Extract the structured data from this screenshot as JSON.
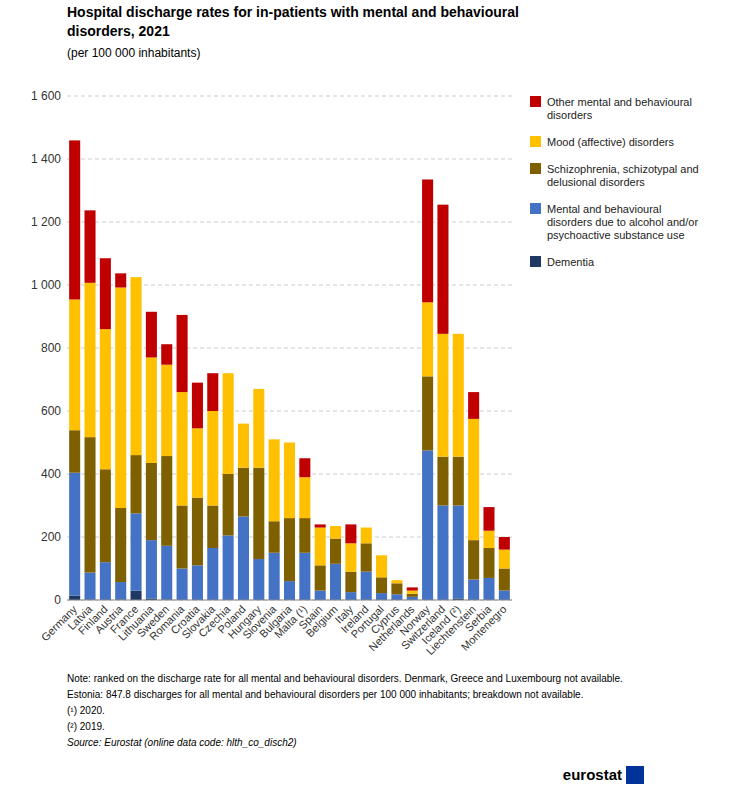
{
  "chart_data": {
    "type": "bar",
    "stacked": true,
    "title": "Hospital discharge rates for in-patients with mental and behavioural\ndisorders, 2021",
    "subtitle": "(per 100 000 inhabitants)",
    "categories": [
      "Germany",
      "Latvia",
      "Finland",
      "Austria",
      "France",
      "Lithuania",
      "Sweden",
      "Romania",
      "Croatia",
      "Slovakia",
      "Czechia",
      "Poland",
      "Hungary",
      "Slovenia",
      "Bulgaria",
      "Malta (¹)",
      "Spain",
      "Belgium",
      "Italy",
      "Ireland",
      "Portugal",
      "Cyprus",
      "Netherlands",
      "Norway",
      "Switzerland",
      "Iceland (²)",
      "Liechtenstein",
      "Serbia",
      "Montenegro"
    ],
    "series": [
      {
        "name": "Dementia",
        "color": "#1f3864",
        "values": [
          14,
          2,
          0,
          2,
          30,
          5,
          2,
          0,
          0,
          0,
          0,
          0,
          0,
          0,
          0,
          0,
          0,
          0,
          0,
          0,
          0,
          0,
          0,
          0,
          0,
          5,
          0,
          0,
          0
        ]
      },
      {
        "name": "Mental and behavioural\ndisorders due to alcohol and/or\npsychoactive substance use",
        "color": "#4472c4",
        "values": [
          390,
          85,
          120,
          55,
          245,
          185,
          170,
          100,
          110,
          165,
          205,
          265,
          130,
          150,
          60,
          150,
          30,
          115,
          25,
          90,
          22,
          18,
          10,
          475,
          300,
          295,
          65,
          70,
          30
        ]
      },
      {
        "name": "Schizophrenia, schizotypal and\ndelusional disorders",
        "color": "#7f6000",
        "values": [
          135,
          430,
          295,
          235,
          185,
          245,
          285,
          200,
          215,
          135,
          195,
          155,
          290,
          100,
          200,
          110,
          80,
          80,
          65,
          90,
          50,
          35,
          10,
          235,
          155,
          155,
          125,
          95,
          70
        ]
      },
      {
        "name": "Mood (affective) disorders",
        "color": "#ffc000",
        "values": [
          415,
          490,
          445,
          700,
          565,
          335,
          290,
          360,
          220,
          300,
          320,
          140,
          250,
          260,
          240,
          130,
          120,
          40,
          90,
          50,
          70,
          10,
          10,
          235,
          390,
          390,
          385,
          55,
          60
        ]
      },
      {
        "name": "Other mental and behavioural\ndisorders",
        "color": "#c00000",
        "values": [
          505,
          230,
          225,
          45,
          0,
          145,
          65,
          245,
          145,
          120,
          0,
          0,
          0,
          0,
          0,
          60,
          10,
          0,
          60,
          0,
          0,
          0,
          10,
          390,
          410,
          0,
          85,
          75,
          40
        ]
      }
    ],
    "ylim": [
      0,
      1600
    ],
    "yticks": [
      0,
      200,
      400,
      600,
      800,
      {
        "value": 1000,
        "label": "1 000"
      },
      {
        "value": 1200,
        "label": "1 200"
      },
      {
        "value": 1400,
        "label": "1 400"
      },
      {
        "value": 1600,
        "label": "1 600"
      }
    ],
    "grid": true,
    "legend": "right",
    "annotations": [
      "Note: ranked on the discharge rate for all mental and behavioural disorders. Denmark, Greece and Luxembourg not available.",
      "Estonia: 847.8 discharges for all mental and behavioural disorders per 100 000 inhabitants; breakdown not available.",
      "(¹) 2020.",
      "(²) 2019.",
      "Source: Eurostat (online data code: hlth_co_disch2)",
      "eurostat"
    ]
  }
}
